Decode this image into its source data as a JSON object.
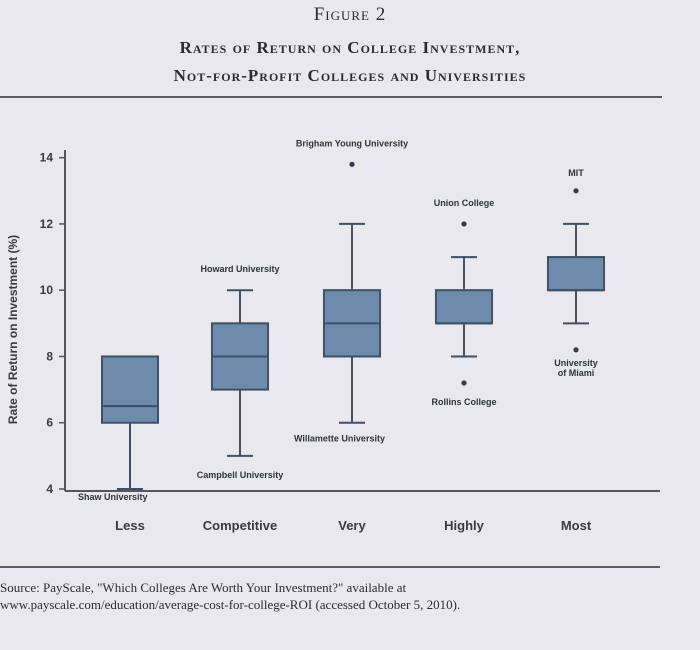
{
  "figure": {
    "label": "Figure 2",
    "title_line1": "Rates of Return on College Investment,",
    "title_line2": "Not-for-Profit Colleges and Universities"
  },
  "colors": {
    "box_fill": "#6d8cab",
    "box_stroke": "#3e4f66",
    "whisker": "#3e4f66",
    "axis": "#55555e",
    "background": "#e9e8ec"
  },
  "chart_data": {
    "type": "box",
    "title": "",
    "xlabel": "",
    "ylabel": "Rate of Return on Investment (%)",
    "ylim": [
      4,
      14
    ],
    "yticks": [
      4,
      6,
      8,
      10,
      12,
      14
    ],
    "categories": [
      "Less",
      "Competitive",
      "Very",
      "Highly",
      "Most"
    ],
    "boxes": [
      {
        "category": "Less",
        "min": 4.0,
        "q1": 6.0,
        "median": 6.5,
        "q3": 8.0,
        "max": 8.0
      },
      {
        "category": "Competitive",
        "min": 5.0,
        "q1": 7.0,
        "median": 8.0,
        "q3": 9.0,
        "max": 10.0
      },
      {
        "category": "Very",
        "min": 6.0,
        "q1": 8.0,
        "median": 9.0,
        "q3": 10.0,
        "max": 12.0
      },
      {
        "category": "Highly",
        "min": 8.0,
        "q1": 9.0,
        "median": 9.0,
        "q3": 10.0,
        "max": 11.0
      },
      {
        "category": "Most",
        "min": 9.0,
        "q1": 10.0,
        "median": 10.0,
        "q3": 11.0,
        "max": 12.0
      }
    ],
    "outliers": [
      {
        "category": "Very",
        "y": 13.8
      },
      {
        "category": "Highly",
        "y": 12.0
      },
      {
        "category": "Highly",
        "y": 7.2
      },
      {
        "category": "Most",
        "y": 13.0
      },
      {
        "category": "Most",
        "y": 8.2
      }
    ],
    "annotations": [
      {
        "text": "Shaw University",
        "category": "Less",
        "y": 4.0,
        "anchor": "below-left"
      },
      {
        "text": "Howard University",
        "category": "Competitive",
        "y": 10.0,
        "anchor": "above"
      },
      {
        "text": "Campbell University",
        "category": "Competitive",
        "y": 5.0,
        "anchor": "below"
      },
      {
        "text": "Brigham Young University",
        "category": "Very",
        "y": 13.8,
        "anchor": "above"
      },
      {
        "text": "Willamette University",
        "category": "Very",
        "y": 6.0,
        "anchor": "below-right"
      },
      {
        "text": "Union College",
        "category": "Highly",
        "y": 12.0,
        "anchor": "above"
      },
      {
        "text": "Rollins College",
        "category": "Highly",
        "y": 7.2,
        "anchor": "below"
      },
      {
        "text": "MIT",
        "category": "Most",
        "y": 13.0,
        "anchor": "above"
      },
      {
        "text": "University of Miami",
        "category": "Most",
        "y": 8.2,
        "anchor": "below"
      }
    ]
  },
  "source": {
    "line1": "Source: PayScale, \"Which Colleges Are Worth Your Investment?\" available at",
    "line2": "www.payscale.com/education/average-cost-for-college-ROI (accessed October 5, 2010)."
  }
}
